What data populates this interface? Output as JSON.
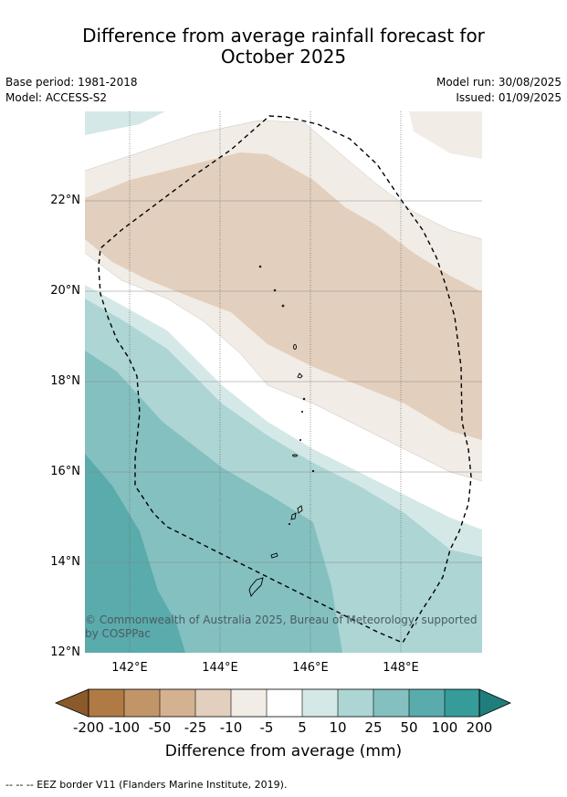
{
  "title_line1": "Difference from average rainfall forecast for",
  "title_line2": "October 2025",
  "meta": {
    "base_period": "Base period: 1981-2018",
    "model": "Model: ACCESS-S2",
    "model_run": "Model run: 30/08/2025",
    "issued": "Issued: 01/09/2025"
  },
  "map": {
    "lat_labels": [
      "22°N",
      "20°N",
      "18°N",
      "16°N",
      "14°N",
      "12°N"
    ],
    "lon_labels": [
      "142°E",
      "144°E",
      "146°E",
      "148°E"
    ],
    "copyright": "© Commonwealth of Australia 2025, Bureau of Meteorology, supported by COSPPac"
  },
  "colorbar": {
    "ticks": [
      "-200",
      "-100",
      "-50",
      "-25",
      "-10",
      "-5",
      "5",
      "10",
      "25",
      "50",
      "100",
      "200"
    ],
    "colors": [
      "#8b5a2b",
      "#b07a44",
      "#c29568",
      "#d4b190",
      "#e3cfbd",
      "#f2ece6",
      "#ffffff",
      "#d4e9e7",
      "#acd5d4",
      "#84c0c0",
      "#5aabab",
      "#359c9a",
      "#1f7e7c"
    ],
    "label": "Difference from average (mm)"
  },
  "footnote": "--  --  -- EEZ border V11 (Flanders Marine Institute, 2019)."
}
